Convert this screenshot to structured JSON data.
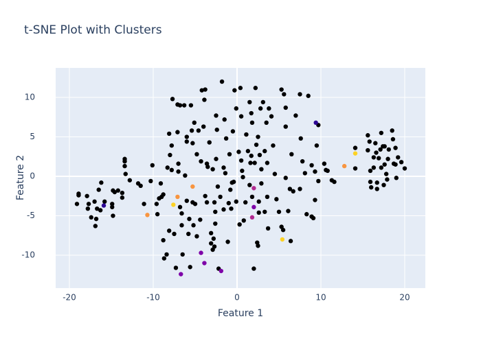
{
  "chart_data": {
    "type": "scatter",
    "title": "t-SNE Plot with Clusters",
    "x_label": "Feature 1",
    "y_label": "Feature 2",
    "xlim": [
      -21.64,
      22.46
    ],
    "ylim": [
      -14.17,
      13.74
    ],
    "xticks": [
      -20,
      -10,
      0,
      10,
      20
    ],
    "yticks": [
      -10,
      -5,
      0,
      5,
      10
    ],
    "grid": true,
    "zeroline": true,
    "plot_background": "#e5ecf6",
    "series": [
      {
        "color": "#000000",
        "x": [
          -19.1,
          -18.9,
          -18.9,
          -17.9,
          -17.7,
          -17.8,
          -17.4,
          -17,
          -16.9,
          -16.7,
          -16.8,
          -16.5,
          -16.2,
          -16.3,
          -15.8,
          -14.9,
          -14.9,
          -14.8,
          -14.6,
          -14.8,
          -14.2,
          -13.7,
          -13.7,
          -13.4,
          -13.4,
          -13.4,
          -13.3,
          -12.8,
          -11.8,
          -11.5,
          -11.1,
          -10.3,
          -10.1,
          -9.6,
          -9.5,
          -9.3,
          -9,
          -9.1,
          -8.8,
          -8.8,
          -8.7,
          -8.4,
          -8.1,
          -8.3,
          -8.1,
          -8,
          -7.8,
          -7.8,
          -7.7,
          -7.5,
          -7.3,
          -7.1,
          -7.1,
          -7,
          -7,
          -6.8,
          -6.8,
          -6.6,
          -6.6,
          -6.5,
          -6.3,
          -6.2,
          -6,
          -6,
          -6,
          -5.8,
          -5.7,
          -5.6,
          -5.5,
          -5.4,
          -5.3,
          -5.3,
          -5.2,
          -5.1,
          -5,
          -4.8,
          -4.8,
          -4.6,
          -4.4,
          -4.3,
          -4.2,
          -4,
          -3.9,
          -3.8,
          -3.8,
          -3.6,
          -3.6,
          -3.5,
          -3.3,
          -3.1,
          -3.1,
          -2.9,
          -2.9,
          -2.8,
          -2.7,
          -2.7,
          -2.6,
          -2.6,
          -2.5,
          -2.5,
          -2.4,
          -2.3,
          -2.2,
          -2,
          -1.8,
          -1.6,
          -1.6,
          -1.5,
          -1.4,
          -1.3,
          -1.1,
          -1,
          -0.9,
          -0.8,
          -0.7,
          -0.6,
          -0.5,
          -0.4,
          -0.3,
          -0.1,
          -0.1,
          0.2,
          0.3,
          0.4,
          0.5,
          0.5,
          0.6,
          0.7,
          0.8,
          1,
          1.1,
          1.3,
          1.5,
          1.5,
          1.6,
          1.7,
          1.7,
          1.8,
          1.8,
          2,
          2.1,
          2.2,
          2.3,
          2.4,
          2.5,
          2.5,
          2.6,
          2.6,
          2.7,
          2.8,
          2.9,
          2.9,
          3.1,
          3.3,
          3.3,
          3.5,
          3.6,
          3.6,
          3.7,
          3.8,
          4.1,
          4.3,
          4.5,
          4.7,
          5,
          5.3,
          5.3,
          5.5,
          5.6,
          5.8,
          5.8,
          5.8,
          6.1,
          6.3,
          6.4,
          6.5,
          6.7,
          7,
          7.5,
          7.5,
          7.6,
          7.8,
          8.1,
          8.3,
          8.5,
          8.9,
          8.9,
          9.1,
          9.3,
          9.3,
          9.5,
          9.7,
          9.7,
          10.4,
          10.6,
          10.8,
          11.3,
          11.6,
          14.1,
          14.1,
          15.6,
          15.8,
          15.6,
          15.9,
          15.9,
          16,
          16.3,
          16.3,
          16.5,
          16.6,
          16.7,
          16.7,
          17.2,
          17.1,
          17.2,
          17.4,
          17.6,
          17.6,
          17.5,
          17.8,
          18,
          18.1,
          18.5,
          18.6,
          18.7,
          18.9,
          18.9,
          19,
          19.2,
          19.6,
          20,
          17.9,
          16.9
        ],
        "y": [
          -3.5,
          -2.4,
          -2.2,
          -2.5,
          -3.5,
          -4.1,
          -5.2,
          -3.2,
          -6.3,
          -4.1,
          -5.4,
          -1.7,
          -0.8,
          -4.3,
          -3.2,
          -3.5,
          -3.9,
          -5,
          -2,
          -1.8,
          -1.8,
          -2.7,
          -2.1,
          2.2,
          1.9,
          1.3,
          0.3,
          -0.5,
          -0.9,
          -1.2,
          -3.5,
          -0.6,
          1.4,
          -3.5,
          -4.8,
          -2.8,
          -2.6,
          -0.9,
          -2.3,
          -8.1,
          -10.4,
          -9.9,
          -6.9,
          1.1,
          5.4,
          2.7,
          0.8,
          3.9,
          9.8,
          -7.3,
          -11.6,
          9.1,
          5.6,
          1.6,
          0.6,
          9,
          -3.9,
          -6.2,
          -4.7,
          -9.9,
          9,
          0.1,
          5,
          4.4,
          -3.1,
          -7.3,
          -5.4,
          -11.5,
          9,
          5.8,
          4.2,
          -3.3,
          -6.2,
          6.8,
          -3.5,
          -7.6,
          2.8,
          5.8,
          -5.5,
          1.9,
          10.9,
          6.3,
          9.7,
          11,
          -2.5,
          -3.3,
          1.6,
          1.2,
          4.3,
          -7.2,
          -8.5,
          0.9,
          -9.3,
          -7.9,
          -8.9,
          -3.3,
          -4.5,
          -6,
          2.2,
          7.7,
          5.9,
          -1.3,
          -11.7,
          -2.6,
          12,
          1.1,
          -4.2,
          7.2,
          0.4,
          4.8,
          -8.3,
          -3.4,
          2.8,
          -1.7,
          -4.1,
          -0.8,
          5.7,
          -0.7,
          10.9,
          8.6,
          -3.2,
          3.1,
          -6.1,
          11.2,
          7.6,
          2,
          0.7,
          -0.1,
          -5.6,
          -3.3,
          5.3,
          3.2,
          9.4,
          -1.1,
          1.7,
          2.6,
          8,
          -2.6,
          6.8,
          -11.7,
          1.7,
          11.2,
          4,
          -8.4,
          -8.8,
          5,
          -3.2,
          -4.6,
          2.7,
          8.6,
          0.9,
          -0.9,
          9.4,
          3.2,
          -4.5,
          6.8,
          -2.6,
          1.7,
          -6.6,
          8.6,
          7.6,
          3.9,
          0.3,
          -2.9,
          -4.5,
          11,
          -6.4,
          -6.8,
          10.4,
          8.7,
          -0.2,
          6.3,
          -4.4,
          -1.6,
          -8.2,
          2.8,
          -1.9,
          7.7,
          -1.6,
          10.4,
          4.8,
          1.9,
          0.4,
          -4.8,
          10.2,
          -5.1,
          1.4,
          -5.3,
          0.6,
          -3,
          3.9,
          -0.6,
          6.5,
          1.6,
          0.8,
          0.7,
          -0.5,
          -0.7,
          3.6,
          1,
          5.2,
          4.4,
          3.3,
          0.7,
          -0.7,
          -1.4,
          2.4,
          1.1,
          4.2,
          3,
          -0.8,
          -1.6,
          1.1,
          3.4,
          5.5,
          3.8,
          3.8,
          1.5,
          -1.1,
          0.3,
          2.2,
          3.4,
          5.8,
          4.7,
          1.6,
          1.5,
          3.6,
          -0.2,
          2.4,
          1.8,
          1,
          -0.4,
          2.3
        ]
      },
      {
        "color": "#2c0594",
        "x": [
          9.4,
          -15.9
        ],
        "y": [
          6.8,
          -3.7
        ]
      },
      {
        "color": "#7e03a8",
        "x": [
          -4.3,
          -3.9,
          -6.7,
          -1.9,
          2.0
        ],
        "y": [
          -9.7,
          -11.0,
          -12.4,
          -12.0,
          -3.9
        ]
      },
      {
        "color": "#b12a90",
        "x": [
          2.0,
          1.8
        ],
        "y": [
          -1.5,
          -5.2
        ]
      },
      {
        "color": "#f89540",
        "x": [
          12.8,
          -5.3,
          -7.1,
          -10.7
        ],
        "y": [
          1.3,
          -1.3,
          -2.6,
          -4.9
        ]
      },
      {
        "color": "#fcd225",
        "x": [
          14.1,
          -7.6,
          5.4
        ],
        "y": [
          2.9,
          -3.6,
          -8.0
        ]
      }
    ]
  }
}
